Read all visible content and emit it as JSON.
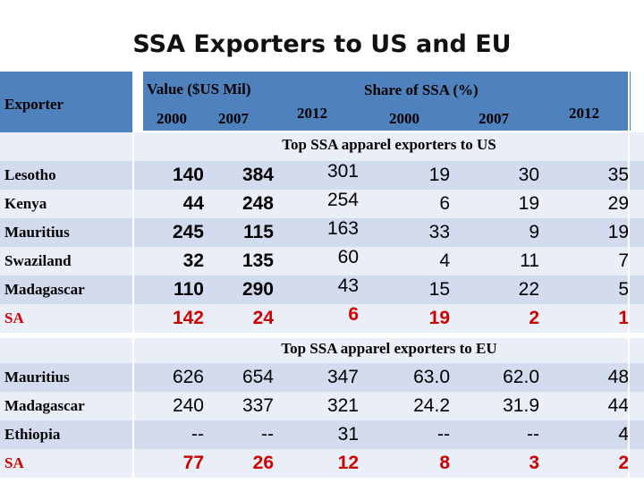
{
  "title": "SSA Exporters to US and EU",
  "header": {
    "exporter": "Exporter",
    "value_group": "Value ($US Mil)",
    "share_group": "Share of SSA (%)",
    "years": [
      "2000",
      "2007",
      "2012",
      "2000",
      "2007",
      "2012"
    ]
  },
  "sections": [
    {
      "title": "Top SSA apparel exporters to US",
      "rows": [
        {
          "name": "Lesotho",
          "values": [
            "140",
            "384",
            "301",
            "19",
            "30",
            "35"
          ]
        },
        {
          "name": "Kenya",
          "values": [
            "44",
            "248",
            "254",
            "6",
            "19",
            "29"
          ]
        },
        {
          "name": "Mauritius",
          "values": [
            "245",
            "115",
            "163",
            "33",
            "9",
            "19"
          ]
        },
        {
          "name": "Swaziland",
          "values": [
            "32",
            "135",
            "60",
            "4",
            "11",
            "7"
          ]
        },
        {
          "name": "Madagascar",
          "values": [
            "110",
            "290",
            "43",
            "15",
            "22",
            "5"
          ]
        },
        {
          "name": "SA",
          "values": [
            "142",
            "24",
            "6",
            "19",
            "2",
            "1"
          ]
        }
      ]
    },
    {
      "title": "Top SSA apparel exporters to EU",
      "rows": [
        {
          "name": "Mauritius",
          "values": [
            "626",
            "654",
            "347",
            "63.0",
            "62.0",
            "48"
          ]
        },
        {
          "name": "Madagascar",
          "values": [
            "240",
            "337",
            "321",
            "24.2",
            "31.9",
            "44"
          ]
        },
        {
          "name": "Ethiopia",
          "values": [
            "--",
            "--",
            "31",
            "--",
            "--",
            "4"
          ]
        },
        {
          "name": "SA",
          "values": [
            "77",
            "26",
            "12",
            "8",
            "3",
            "2"
          ]
        }
      ]
    }
  ],
  "colors": {
    "header": "#4f81bd",
    "row_odd": "#d3dcee",
    "row_even": "#eaeef7",
    "highlight": "#cc0000"
  }
}
